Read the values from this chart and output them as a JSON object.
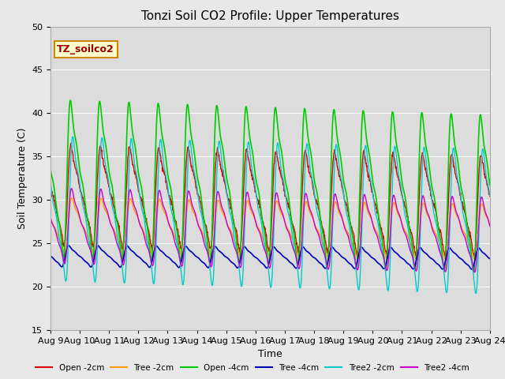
{
  "title": "Tonzi Soil CO2 Profile: Upper Temperatures",
  "xlabel": "Time",
  "ylabel": "Soil Temperature (C)",
  "ylim": [
    15,
    50
  ],
  "annotation_text": "TZ_soilco2",
  "annotation_bg": "#ffffcc",
  "annotation_border": "#cc8800",
  "series": [
    {
      "label": "Open -2cm",
      "color": "#dd0000",
      "lw": 1.0
    },
    {
      "label": "Tree -2cm",
      "color": "#ff9900",
      "lw": 1.0
    },
    {
      "label": "Open -4cm",
      "color": "#00cc00",
      "lw": 1.2
    },
    {
      "label": "Tree -4cm",
      "color": "#0000bb",
      "lw": 1.2
    },
    {
      "label": "Tree2 -2cm",
      "color": "#00cccc",
      "lw": 1.0
    },
    {
      "label": "Tree2 -4cm",
      "color": "#cc00cc",
      "lw": 1.0
    }
  ],
  "xtick_labels": [
    "Aug 9",
    "Aug 10",
    "Aug 11",
    "Aug 12",
    "Aug 13",
    "Aug 14",
    "Aug 15",
    "Aug 16",
    "Aug 17",
    "Aug 18",
    "Aug 19",
    "Aug 20",
    "Aug 21",
    "Aug 22",
    "Aug 23",
    "Aug 24"
  ],
  "grid_color": "#ffffff",
  "title_fontsize": 11,
  "label_fontsize": 9,
  "tick_fontsize": 8
}
